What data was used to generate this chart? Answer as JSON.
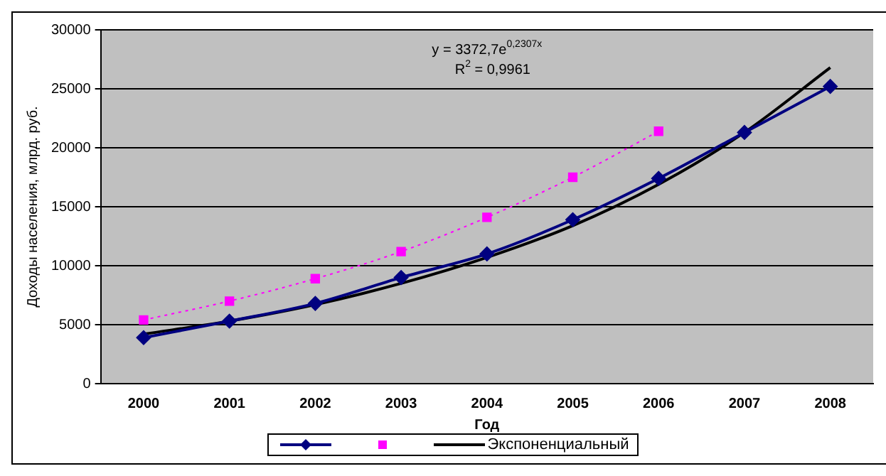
{
  "chart_data": {
    "type": "line",
    "xlabel": "Год",
    "ylabel": "Доходы населения, млрд. руб.",
    "categories": [
      "2000",
      "2001",
      "2002",
      "2003",
      "2004",
      "2005",
      "2006",
      "2007",
      "2008"
    ],
    "series": [
      {
        "color": "#000080",
        "values": [
          3900,
          5300,
          6800,
          9000,
          11000,
          13900,
          17400,
          21300,
          25200
        ],
        "marker": "diamond",
        "line_style": "solid"
      },
      {
        "color": "#ff00ff",
        "values": [
          5400,
          7000,
          8900,
          11200,
          14100,
          17500,
          21400,
          null,
          null
        ],
        "marker": "square",
        "line_style": "dotted"
      },
      {
        "name": "Экспоненциальный",
        "color": "#000000",
        "values": [
          4200,
          5300,
          6700,
          8500,
          10700,
          13400,
          16900,
          21300,
          26800
        ],
        "marker": "none",
        "line_style": "solid"
      }
    ],
    "annotations": [
      "y = 3372,7e$^{0,2307x}$",
      "R$^{2}$ = 0,9961"
    ],
    "ylim": [
      0,
      30000
    ],
    "yticks": [
      0,
      5000,
      10000,
      15000,
      20000,
      25000,
      30000
    ],
    "grid": "y",
    "legend": "bottom"
  }
}
